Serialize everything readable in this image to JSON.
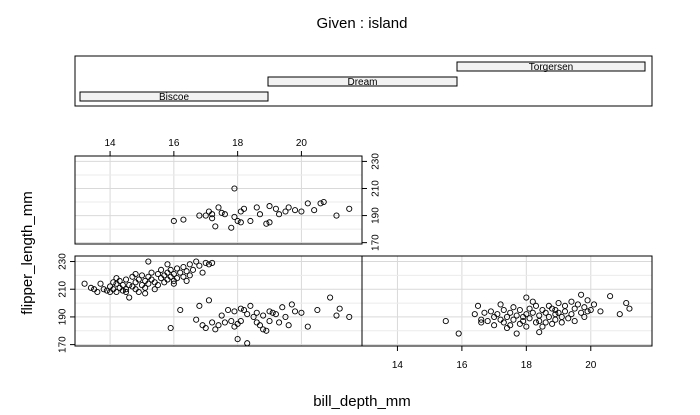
{
  "chart_data": {
    "type": "scatter",
    "title": "Given : island",
    "xlabel": "bill_depth_mm",
    "ylabel": "flipper_length_mm",
    "xlim": [
      12.9,
      21.9
    ],
    "ylim": [
      169,
      234
    ],
    "x_ticks": [
      14,
      16,
      18,
      20
    ],
    "y_ticks": [
      170,
      190,
      210,
      230
    ],
    "grid": true,
    "given_levels": [
      "Biscoe",
      "Dream",
      "Torgersen"
    ],
    "panels": [
      {
        "name": "Biscoe",
        "points": [
          [
            13.2,
            214
          ],
          [
            13.4,
            211
          ],
          [
            13.5,
            210
          ],
          [
            13.6,
            208
          ],
          [
            13.7,
            214
          ],
          [
            13.8,
            210
          ],
          [
            13.9,
            209
          ],
          [
            14.0,
            212
          ],
          [
            14.0,
            208
          ],
          [
            14.1,
            215
          ],
          [
            14.1,
            210
          ],
          [
            14.2,
            214
          ],
          [
            14.2,
            208
          ],
          [
            14.3,
            216
          ],
          [
            14.3,
            211
          ],
          [
            14.4,
            213
          ],
          [
            14.4,
            209
          ],
          [
            14.5,
            217
          ],
          [
            14.5,
            210
          ],
          [
            14.5,
            208
          ],
          [
            14.6,
            213
          ],
          [
            14.7,
            219
          ],
          [
            14.7,
            212
          ],
          [
            14.8,
            210
          ],
          [
            14.8,
            215
          ],
          [
            14.9,
            217
          ],
          [
            14.9,
            208
          ],
          [
            15.0,
            220
          ],
          [
            15.0,
            213
          ],
          [
            15.1,
            211
          ],
          [
            15.1,
            216
          ],
          [
            15.2,
            219
          ],
          [
            15.2,
            214
          ],
          [
            15.3,
            222
          ],
          [
            15.3,
            217
          ],
          [
            15.4,
            215
          ],
          [
            15.4,
            210
          ],
          [
            15.5,
            221
          ],
          [
            15.5,
            213
          ],
          [
            15.6,
            218
          ],
          [
            15.7,
            220
          ],
          [
            15.7,
            215
          ],
          [
            15.8,
            222
          ],
          [
            15.8,
            217
          ],
          [
            15.9,
            224
          ],
          [
            15.9,
            219
          ],
          [
            16.0,
            221
          ],
          [
            16.0,
            216
          ],
          [
            16.1,
            225
          ],
          [
            16.1,
            218
          ],
          [
            16.2,
            222
          ],
          [
            16.3,
            219
          ],
          [
            16.3,
            226
          ],
          [
            16.4,
            223
          ],
          [
            16.5,
            228
          ],
          [
            16.5,
            220
          ],
          [
            16.6,
            224
          ],
          [
            16.7,
            230
          ],
          [
            16.8,
            227
          ],
          [
            16.9,
            222
          ],
          [
            17.0,
            229
          ],
          [
            17.1,
            228
          ],
          [
            17.2,
            229
          ],
          [
            15.2,
            230
          ],
          [
            15.8,
            228
          ],
          [
            16.4,
            216
          ],
          [
            15.6,
            224
          ],
          [
            14.8,
            221
          ],
          [
            14.2,
            218
          ],
          [
            16.0,
            214
          ],
          [
            14.6,
            204
          ],
          [
            15.1,
            207
          ],
          [
            16.8,
            198
          ],
          [
            17.1,
            202
          ],
          [
            17.4,
            184
          ],
          [
            15.9,
            182
          ],
          [
            16.2,
            195
          ],
          [
            16.7,
            188
          ],
          [
            16.9,
            184
          ],
          [
            17.0,
            182
          ],
          [
            17.3,
            181
          ],
          [
            17.6,
            186
          ],
          [
            17.8,
            187
          ],
          [
            17.9,
            183
          ],
          [
            18.0,
            185
          ],
          [
            18.1,
            187
          ],
          [
            18.2,
            195
          ],
          [
            18.3,
            192
          ],
          [
            18.5,
            190
          ],
          [
            18.6,
            186
          ],
          [
            18.7,
            184
          ],
          [
            18.8,
            181
          ],
          [
            18.9,
            180
          ],
          [
            19.0,
            194
          ],
          [
            19.1,
            193
          ],
          [
            19.2,
            192
          ],
          [
            19.3,
            186
          ],
          [
            19.5,
            190
          ],
          [
            19.6,
            184
          ],
          [
            19.7,
            199
          ],
          [
            19.8,
            194
          ],
          [
            20.0,
            193
          ],
          [
            20.5,
            195
          ],
          [
            20.9,
            204
          ],
          [
            21.1,
            191
          ],
          [
            21.2,
            196
          ],
          [
            21.5,
            190
          ],
          [
            17.5,
            191
          ],
          [
            18.4,
            198
          ],
          [
            18.0,
            174
          ],
          [
            18.3,
            171
          ],
          [
            17.2,
            186
          ],
          [
            17.9,
            194
          ],
          [
            18.6,
            193
          ],
          [
            19.0,
            187
          ],
          [
            18.8,
            191
          ],
          [
            18.1,
            196
          ],
          [
            20.2,
            183
          ],
          [
            19.4,
            197
          ],
          [
            17.7,
            195
          ]
        ]
      },
      {
        "name": "Dream",
        "points": [
          [
            15.5,
            187
          ],
          [
            15.9,
            178
          ],
          [
            16.4,
            192
          ],
          [
            16.5,
            198
          ],
          [
            16.6,
            188
          ],
          [
            16.6,
            186
          ],
          [
            16.7,
            193
          ],
          [
            16.8,
            187
          ],
          [
            16.9,
            194
          ],
          [
            17.0,
            190
          ],
          [
            17.0,
            184
          ],
          [
            17.1,
            192
          ],
          [
            17.2,
            199
          ],
          [
            17.2,
            188
          ],
          [
            17.3,
            195
          ],
          [
            17.3,
            186
          ],
          [
            17.4,
            190
          ],
          [
            17.5,
            193
          ],
          [
            17.5,
            184
          ],
          [
            17.6,
            197
          ],
          [
            17.6,
            188
          ],
          [
            17.7,
            191
          ],
          [
            17.8,
            185
          ],
          [
            17.8,
            195
          ],
          [
            17.9,
            190
          ],
          [
            17.9,
            187
          ],
          [
            18.0,
            192
          ],
          [
            18.0,
            183
          ],
          [
            18.1,
            196
          ],
          [
            18.1,
            189
          ],
          [
            18.2,
            193
          ],
          [
            18.3,
            186
          ],
          [
            18.3,
            198
          ],
          [
            18.4,
            191
          ],
          [
            18.4,
            187
          ],
          [
            18.5,
            195
          ],
          [
            18.5,
            183
          ],
          [
            18.6,
            193
          ],
          [
            18.6,
            186
          ],
          [
            18.7,
            198
          ],
          [
            18.7,
            190
          ],
          [
            18.8,
            185
          ],
          [
            18.8,
            196
          ],
          [
            18.9,
            192
          ],
          [
            18.9,
            188
          ],
          [
            19.0,
            200
          ],
          [
            19.0,
            193
          ],
          [
            19.1,
            190
          ],
          [
            19.1,
            186
          ],
          [
            19.2,
            198
          ],
          [
            19.2,
            194
          ],
          [
            19.3,
            189
          ],
          [
            19.4,
            201
          ],
          [
            19.4,
            192
          ],
          [
            19.5,
            196
          ],
          [
            19.5,
            187
          ],
          [
            19.6,
            199
          ],
          [
            19.7,
            193
          ],
          [
            19.8,
            197
          ],
          [
            19.8,
            190
          ],
          [
            19.9,
            202
          ],
          [
            19.9,
            194
          ],
          [
            20.0,
            195
          ],
          [
            20.1,
            199
          ],
          [
            20.3,
            194
          ],
          [
            20.6,
            205
          ],
          [
            20.9,
            192
          ],
          [
            21.1,
            200
          ],
          [
            21.2,
            196
          ],
          [
            19.7,
            206
          ],
          [
            18.9,
            195
          ],
          [
            17.4,
            182
          ],
          [
            18.2,
            201
          ],
          [
            18.4,
            179
          ],
          [
            17.7,
            178
          ],
          [
            18.0,
            204
          ]
        ]
      },
      {
        "name": "Torgersen",
        "points": [
          [
            16.0,
            186
          ],
          [
            16.3,
            187
          ],
          [
            16.8,
            190
          ],
          [
            17.0,
            190
          ],
          [
            17.1,
            193
          ],
          [
            17.2,
            188
          ],
          [
            17.2,
            191
          ],
          [
            17.3,
            182
          ],
          [
            17.4,
            196
          ],
          [
            17.5,
            192
          ],
          [
            17.6,
            191
          ],
          [
            17.8,
            181
          ],
          [
            17.9,
            189
          ],
          [
            18.0,
            186
          ],
          [
            18.1,
            185
          ],
          [
            18.2,
            195
          ],
          [
            18.4,
            186
          ],
          [
            18.6,
            196
          ],
          [
            18.7,
            191
          ],
          [
            18.9,
            184
          ],
          [
            19.0,
            185
          ],
          [
            19.2,
            195
          ],
          [
            19.3,
            191
          ],
          [
            19.5,
            193
          ],
          [
            19.6,
            196
          ],
          [
            19.8,
            194
          ],
          [
            20.0,
            193
          ],
          [
            20.2,
            199
          ],
          [
            20.4,
            194
          ],
          [
            20.6,
            199
          ],
          [
            20.7,
            200
          ],
          [
            21.1,
            190
          ],
          [
            21.5,
            195
          ],
          [
            17.9,
            210
          ],
          [
            18.1,
            193
          ],
          [
            19.0,
            197
          ]
        ]
      }
    ]
  }
}
